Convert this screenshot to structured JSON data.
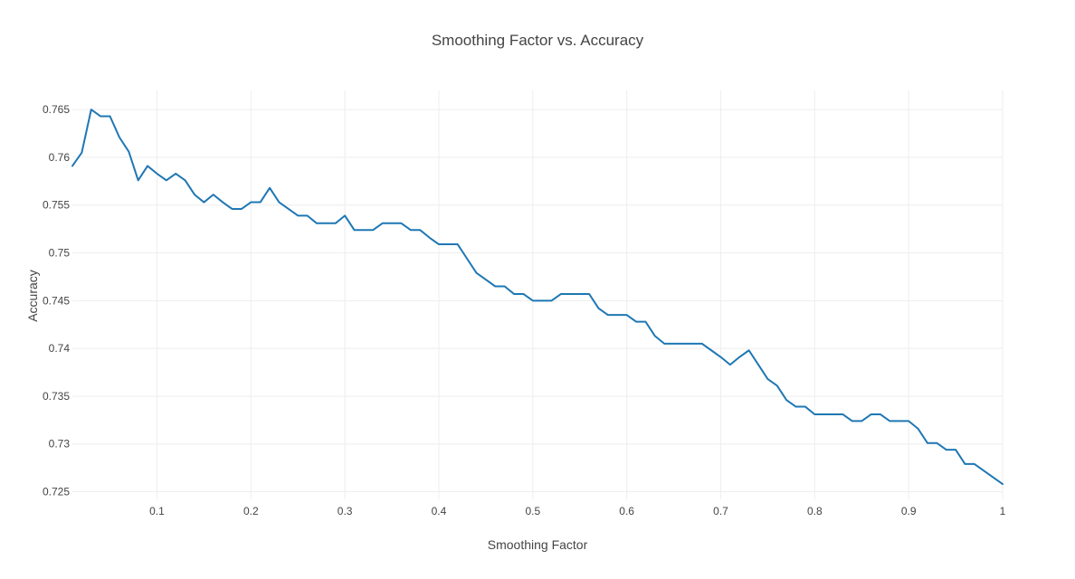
{
  "chart_data": {
    "type": "line",
    "title": "Smoothing Factor vs. Accuracy",
    "xlabel": "Smoothing Factor",
    "ylabel": "Accuracy",
    "xlim": [
      0.01,
      1.0
    ],
    "ylim": [
      0.7242,
      0.767
    ],
    "x_ticks": [
      0.1,
      0.2,
      0.3,
      0.4,
      0.5,
      0.6,
      0.7,
      0.8,
      0.9,
      1.0
    ],
    "x_tick_labels": [
      "0.1",
      "0.2",
      "0.3",
      "0.4",
      "0.5",
      "0.6",
      "0.7",
      "0.8",
      "0.9",
      "1"
    ],
    "y_ticks": [
      0.725,
      0.73,
      0.735,
      0.74,
      0.745,
      0.75,
      0.755,
      0.76,
      0.765
    ],
    "y_tick_labels": [
      "0.725",
      "0.73",
      "0.735",
      "0.74",
      "0.745",
      "0.75",
      "0.755",
      "0.76",
      "0.765"
    ],
    "grid": true,
    "legend": "none",
    "colors": {
      "line": "#1f77b4",
      "grid": "#eeeeee",
      "text": "#444444",
      "background": "#ffffff"
    },
    "series": [
      {
        "x": [
          0.01,
          0.02,
          0.03,
          0.04,
          0.05,
          0.06,
          0.07,
          0.08,
          0.09,
          0.1,
          0.11,
          0.12,
          0.13,
          0.14,
          0.15,
          0.16,
          0.17,
          0.18,
          0.19,
          0.2,
          0.21,
          0.22,
          0.23,
          0.24,
          0.25,
          0.26,
          0.27,
          0.28,
          0.29,
          0.3,
          0.31,
          0.32,
          0.33,
          0.34,
          0.35,
          0.36,
          0.37,
          0.38,
          0.39,
          0.4,
          0.41,
          0.42,
          0.43,
          0.44,
          0.45,
          0.46,
          0.47,
          0.48,
          0.49,
          0.5,
          0.51,
          0.52,
          0.53,
          0.54,
          0.55,
          0.56,
          0.57,
          0.58,
          0.59,
          0.6,
          0.61,
          0.62,
          0.63,
          0.64,
          0.65,
          0.66,
          0.67,
          0.68,
          0.69,
          0.7,
          0.71,
          0.72,
          0.73,
          0.74,
          0.75,
          0.76,
          0.77,
          0.78,
          0.79,
          0.8,
          0.81,
          0.82,
          0.83,
          0.84,
          0.85,
          0.86,
          0.87,
          0.88,
          0.89,
          0.9,
          0.91,
          0.92,
          0.93,
          0.94,
          0.95,
          0.96,
          0.97,
          0.98,
          0.99,
          1.0
        ],
        "y": [
          0.7591,
          0.7605,
          0.765,
          0.7643,
          0.7643,
          0.7621,
          0.7606,
          0.7576,
          0.7591,
          0.7583,
          0.7576,
          0.7583,
          0.7576,
          0.7561,
          0.7553,
          0.7561,
          0.7553,
          0.7546,
          0.7546,
          0.7553,
          0.7553,
          0.7568,
          0.7553,
          0.7546,
          0.7539,
          0.7539,
          0.7531,
          0.7531,
          0.7531,
          0.7539,
          0.7524,
          0.7524,
          0.7524,
          0.7531,
          0.7531,
          0.7531,
          0.7524,
          0.7524,
          0.7516,
          0.7509,
          0.7509,
          0.7509,
          0.7494,
          0.7479,
          0.7472,
          0.7465,
          0.7465,
          0.7457,
          0.7457,
          0.745,
          0.745,
          0.745,
          0.7457,
          0.7457,
          0.7457,
          0.7457,
          0.7442,
          0.7435,
          0.7435,
          0.7435,
          0.7428,
          0.7428,
          0.7413,
          0.7405,
          0.7405,
          0.7405,
          0.7405,
          0.7405,
          0.7398,
          0.7391,
          0.7383,
          0.7391,
          0.7398,
          0.7383,
          0.7368,
          0.7361,
          0.7346,
          0.7339,
          0.7339,
          0.7331,
          0.7331,
          0.7331,
          0.7331,
          0.7324,
          0.7324,
          0.7331,
          0.7331,
          0.7324,
          0.7324,
          0.7324,
          0.7316,
          0.7301,
          0.7301,
          0.7294,
          0.7294,
          0.7279,
          0.7279,
          0.7272,
          0.7265,
          0.7258
        ]
      }
    ]
  }
}
